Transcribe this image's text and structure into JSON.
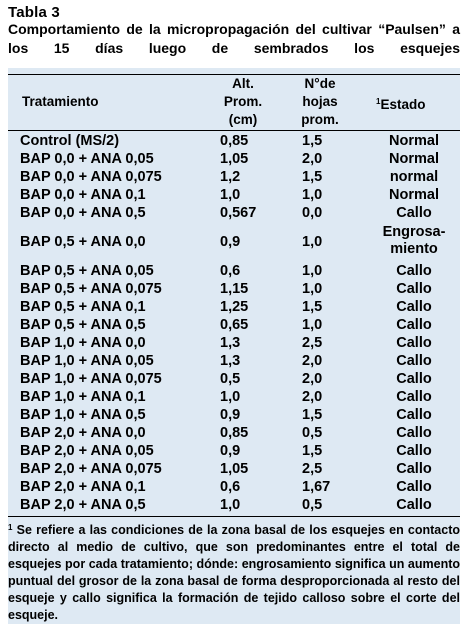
{
  "title": "Tabla 3",
  "caption": "Comportamiento de la micropropagación del cultivar “Paulsen” a los 15 días luego de sembrados los esquejes",
  "headers": {
    "tratamiento": "Tratamiento",
    "alt": [
      "Alt.",
      "Prom.",
      "(cm)"
    ],
    "hojas": [
      "N°de",
      "hojas",
      "prom."
    ],
    "estado_mark": "1",
    "estado": "Estado"
  },
  "rows": [
    {
      "tratamiento": "Control (MS/2)",
      "alt": "0,85",
      "hojas": "1,5",
      "estado": "Normal"
    },
    {
      "tratamiento": "BAP 0,0 + ANA 0,05",
      "alt": "1,05",
      "hojas": "2,0",
      "estado": "Normal"
    },
    {
      "tratamiento": "BAP 0,0 + ANA 0,075",
      "alt": "1,2",
      "hojas": "1,5",
      "estado": "normal"
    },
    {
      "tratamiento": "BAP 0,0 + ANA 0,1",
      "alt": "1,0",
      "hojas": "1,0",
      "estado": "Normal"
    },
    {
      "tratamiento": "BAP 0,0 + ANA 0,5",
      "alt": "0,567",
      "hojas": "0,0",
      "estado": "Callo"
    },
    {
      "tratamiento": "BAP 0,5 + ANA 0,0",
      "alt": "0,9",
      "hojas": "1,0",
      "estado": "Engrosa-miento",
      "estado_lines": [
        "Engrosa-",
        "miento"
      ]
    },
    {
      "tratamiento": "BAP 0,5 + ANA 0,05",
      "alt": "0,6",
      "hojas": "1,0",
      "estado": "Callo"
    },
    {
      "tratamiento": "BAP 0,5 + ANA 0,075",
      "alt": "1,15",
      "hojas": "1,0",
      "estado": "Callo"
    },
    {
      "tratamiento": "BAP 0,5 + ANA 0,1",
      "alt": "1,25",
      "hojas": "1,5",
      "estado": "Callo"
    },
    {
      "tratamiento": "BAP 0,5 + ANA 0,5",
      "alt": "0,65",
      "hojas": "1,0",
      "estado": "Callo"
    },
    {
      "tratamiento": "BAP 1,0 + ANA 0,0",
      "alt": "1,3",
      "hojas": "2,5",
      "estado": "Callo"
    },
    {
      "tratamiento": "BAP 1,0 + ANA 0,05",
      "alt": "1,3",
      "hojas": "2,0",
      "estado": "Callo"
    },
    {
      "tratamiento": "BAP 1,0 + ANA 0,075",
      "alt": "0,5",
      "hojas": "2,0",
      "estado": "Callo"
    },
    {
      "tratamiento": "BAP 1,0 + ANA 0,1",
      "alt": "1,0",
      "hojas": "2,0",
      "estado": "Callo"
    },
    {
      "tratamiento": "BAP 1,0 + ANA 0,5",
      "alt": "0,9",
      "hojas": "1,5",
      "estado": "Callo"
    },
    {
      "tratamiento": "BAP 2,0 + ANA 0,0",
      "alt": "0,85",
      "hojas": "0,5",
      "estado": "Callo"
    },
    {
      "tratamiento": "BAP 2,0 + ANA 0,05",
      "alt": "0,9",
      "hojas": "1,5",
      "estado": "Callo"
    },
    {
      "tratamiento": "BAP 2,0 + ANA 0,075",
      "alt": "1,05",
      "hojas": "2,5",
      "estado": "Callo"
    },
    {
      "tratamiento": "BAP 2,0 + ANA 0,1",
      "alt": "0,6",
      "hojas": "1,67",
      "estado": "Callo"
    },
    {
      "tratamiento": "BAP 2,0 + ANA 0,5",
      "alt": "1,0",
      "hojas": "0,5",
      "estado": "Callo"
    }
  ],
  "footnote": {
    "mark": "1",
    "text": " Se refiere a las condiciones de la zona basal de los esquejes en contacto directo al medio de cultivo, que son predominantes entre el total de esquejes por cada tratamiento; dónde: engrosamiento significa un aumento puntual del grosor de la zona basal de forma desproporcionada al resto del esqueje y callo significa la formación de tejido calloso sobre el corte del esqueje."
  }
}
